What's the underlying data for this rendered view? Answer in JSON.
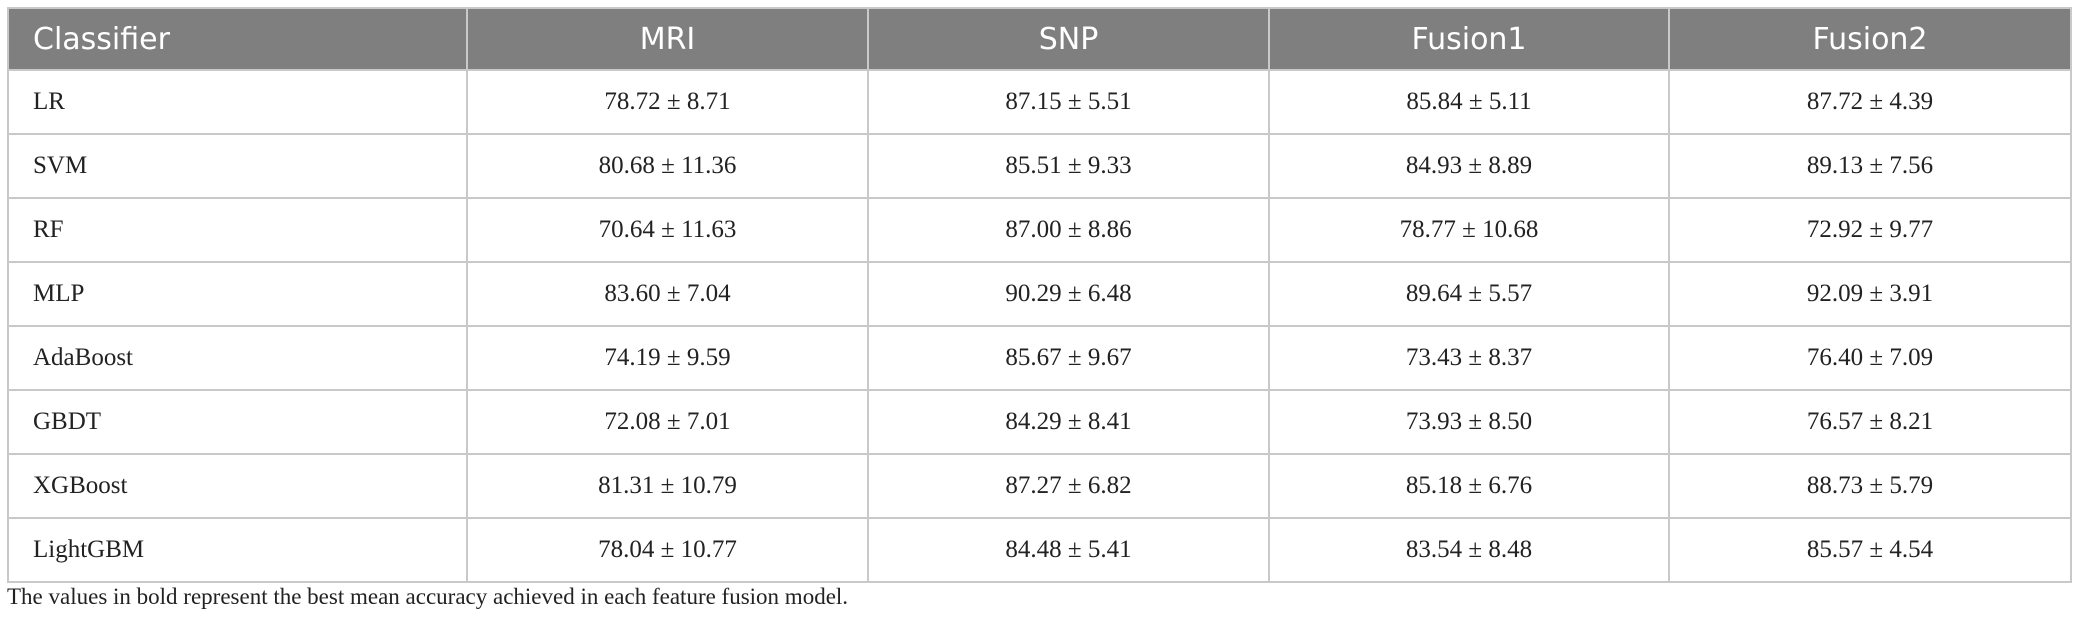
{
  "table": {
    "header": [
      "Classifier",
      "MRI",
      "SNP",
      "Fusion1",
      "Fusion2"
    ],
    "rows": [
      [
        "LR",
        "78.72 ± 8.71",
        "87.15 ± 5.51",
        "85.84 ± 5.11",
        "87.72 ± 4.39"
      ],
      [
        "SVM",
        "80.68 ± 11.36",
        "85.51 ± 9.33",
        "84.93 ± 8.89",
        "89.13 ± 7.56"
      ],
      [
        "RF",
        "70.64 ± 11.63",
        "87.00 ± 8.86",
        "78.77 ± 10.68",
        "72.92 ± 9.77"
      ],
      [
        "MLP",
        "83.60 ± 7.04",
        "90.29 ± 6.48",
        "89.64 ± 5.57",
        "92.09 ± 3.91"
      ],
      [
        "AdaBoost",
        "74.19 ± 9.59",
        "85.67 ± 9.67",
        "73.43 ± 8.37",
        "76.40 ± 7.09"
      ],
      [
        "GBDT",
        "72.08 ± 7.01",
        "84.29 ± 8.41",
        "73.93 ± 8.50",
        "76.57 ± 8.21"
      ],
      [
        "XGBoost",
        "81.31 ± 10.79",
        "87.27 ± 6.82",
        "85.18 ± 6.76",
        "88.73 ± 5.79"
      ],
      [
        "LightGBM",
        "78.04 ± 10.77",
        "84.48 ± 5.41",
        "83.54 ± 8.48",
        "85.57 ± 4.54"
      ]
    ]
  },
  "footnote": "The values in bold represent the best mean accuracy achieved in each feature fusion model."
}
